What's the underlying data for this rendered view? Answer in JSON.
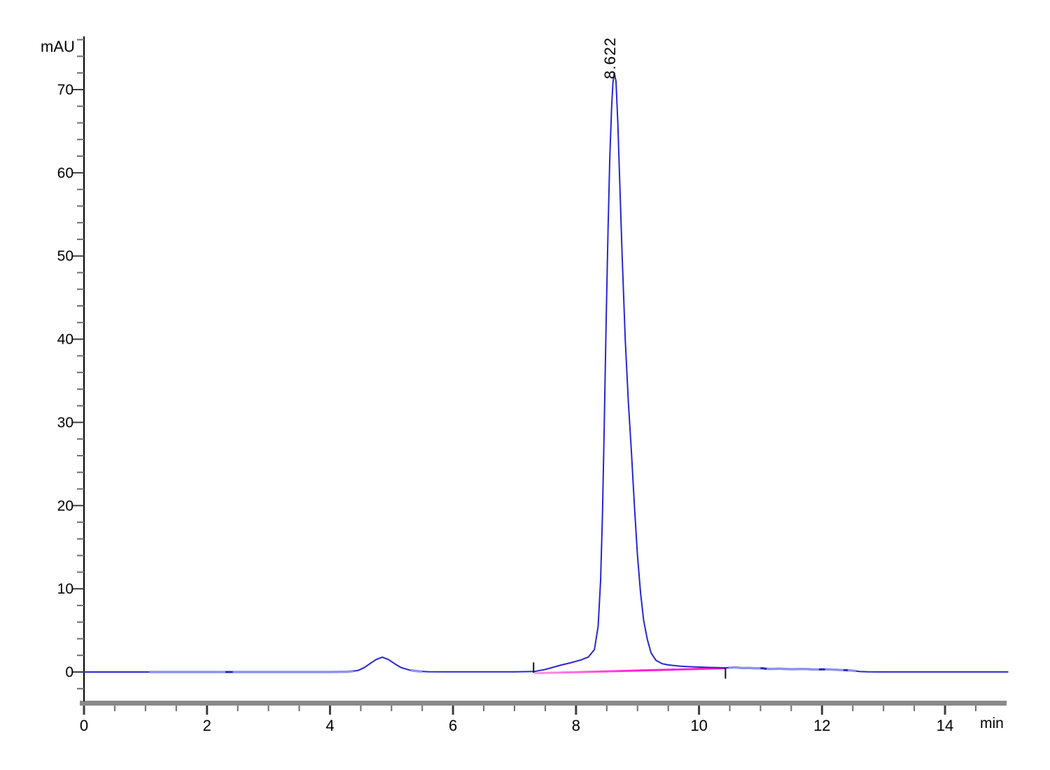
{
  "chart_data": {
    "type": "line",
    "title": "",
    "ylabel": "mAU",
    "xlabel": "min",
    "xlim": [
      0,
      15.05
    ],
    "ylim": [
      -4,
      76.5
    ],
    "x_ticks": {
      "major": [
        0,
        2,
        4,
        6,
        8,
        10,
        12,
        14
      ],
      "minor_step": 0.5,
      "minor_max": 14.5
    },
    "y_ticks": {
      "major": [
        0,
        10,
        20,
        30,
        40,
        50,
        60,
        70
      ],
      "minor_step": 2,
      "minor_min": -2,
      "minor_max": 76
    },
    "grid": false,
    "legend": false,
    "peaks": [
      {
        "label": "8.622",
        "retention_time_min": 8.622,
        "height_mau": 72
      },
      {
        "label": "",
        "retention_time_min": 4.85,
        "height_mau": 1.8
      }
    ],
    "series": [
      {
        "name": "UV absorbance trace",
        "points": [
          [
            0,
            0
          ],
          [
            0.5,
            0
          ],
          [
            1.0,
            0
          ],
          [
            1.5,
            0
          ],
          [
            2.0,
            0
          ],
          [
            2.5,
            0
          ],
          [
            3.0,
            0
          ],
          [
            3.5,
            0
          ],
          [
            4.0,
            0
          ],
          [
            4.3,
            0.03
          ],
          [
            4.45,
            0.18
          ],
          [
            4.55,
            0.5
          ],
          [
            4.65,
            1.0
          ],
          [
            4.75,
            1.5
          ],
          [
            4.85,
            1.78
          ],
          [
            4.95,
            1.5
          ],
          [
            5.05,
            1.0
          ],
          [
            5.15,
            0.55
          ],
          [
            5.3,
            0.22
          ],
          [
            5.45,
            0.08
          ],
          [
            5.6,
            0.03
          ],
          [
            6.0,
            0.02
          ],
          [
            6.5,
            0.02
          ],
          [
            7.0,
            0.02
          ],
          [
            7.32,
            0.06
          ],
          [
            7.5,
            0.3
          ],
          [
            7.74,
            0.8
          ],
          [
            7.91,
            1.1
          ],
          [
            8.08,
            1.45
          ],
          [
            8.2,
            1.8
          ],
          [
            8.3,
            2.7
          ],
          [
            8.36,
            5.5
          ],
          [
            8.4,
            11
          ],
          [
            8.43,
            19
          ],
          [
            8.46,
            30
          ],
          [
            8.49,
            42
          ],
          [
            8.52,
            53
          ],
          [
            8.55,
            62
          ],
          [
            8.58,
            68
          ],
          [
            8.6,
            70.8
          ],
          [
            8.622,
            72
          ],
          [
            8.65,
            71
          ],
          [
            8.68,
            66
          ],
          [
            8.71,
            59
          ],
          [
            8.75,
            50
          ],
          [
            8.8,
            40
          ],
          [
            8.85,
            32.5
          ],
          [
            8.9,
            26.5
          ],
          [
            8.95,
            20
          ],
          [
            9.0,
            14
          ],
          [
            9.05,
            9.5
          ],
          [
            9.1,
            6.2
          ],
          [
            9.16,
            3.9
          ],
          [
            9.22,
            2.3
          ],
          [
            9.3,
            1.4
          ],
          [
            9.4,
            1.0
          ],
          [
            9.5,
            0.85
          ],
          [
            9.7,
            0.7
          ],
          [
            9.9,
            0.62
          ],
          [
            10.1,
            0.56
          ],
          [
            10.3,
            0.52
          ],
          [
            10.43,
            0.5
          ],
          [
            10.5,
            0.52
          ],
          [
            10.6,
            0.56
          ],
          [
            10.7,
            0.46
          ],
          [
            10.8,
            0.5
          ],
          [
            10.9,
            0.44
          ],
          [
            11.0,
            0.46
          ],
          [
            11.15,
            0.36
          ],
          [
            11.3,
            0.4
          ],
          [
            11.5,
            0.33
          ],
          [
            11.7,
            0.36
          ],
          [
            11.9,
            0.3
          ],
          [
            12.1,
            0.32
          ],
          [
            12.3,
            0.24
          ],
          [
            12.45,
            0.2
          ],
          [
            12.55,
            0.12
          ],
          [
            12.62,
            0.05
          ],
          [
            12.75,
            0.02
          ],
          [
            13.0,
            0.01
          ],
          [
            13.5,
            0.01
          ],
          [
            14.0,
            0.01
          ],
          [
            14.5,
            0.01
          ],
          [
            15.02,
            0.01
          ]
        ]
      }
    ],
    "light_segments": [
      [
        1.06,
        4.38
      ],
      [
        5.31,
        5.5
      ],
      [
        10.48,
        12.55
      ]
    ],
    "dark_dashes": [
      [
        2.3,
        2.42
      ],
      [
        11.0,
        11.1
      ],
      [
        11.95,
        12.05
      ],
      [
        12.35,
        12.42
      ]
    ],
    "integration": {
      "baseline": {
        "from": [
          7.32,
          -0.15
        ],
        "to": [
          10.42,
          0.45
        ]
      },
      "marks": [
        {
          "t": 7.31,
          "v_top": 1.15,
          "v_bottom": -0.1
        },
        {
          "t": 10.43,
          "v_top": 0.45,
          "v_bottom": -0.8
        }
      ]
    },
    "colors": {
      "trace": "#2727cf",
      "trace_light": "#8e93ee",
      "baseline_pink_start": "#ff9be2",
      "baseline_pink_end": "#ff1fd0",
      "axis_band": "#8a8a8a",
      "tick_major": "#3d3d3d",
      "tick_minor": "#6e6e6e",
      "axis_line": "#000000",
      "text": "#000000"
    }
  }
}
